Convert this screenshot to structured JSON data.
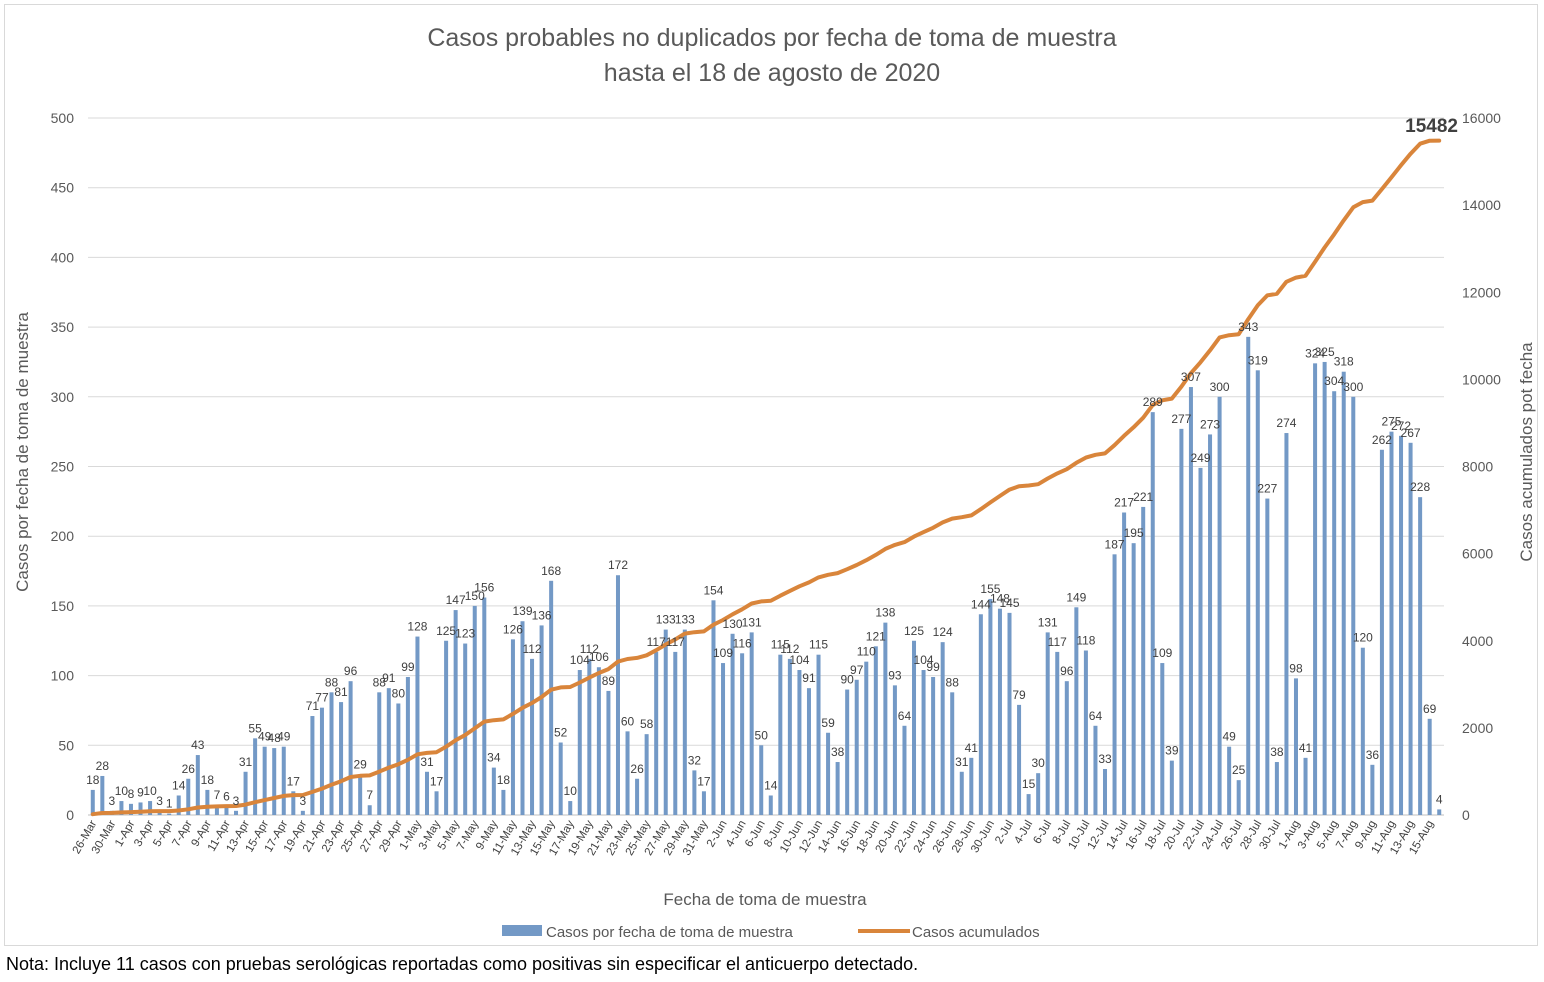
{
  "chart_data": {
    "type": "bar+line",
    "title": [
      "Casos probables no duplicados por fecha de toma de muestra",
      "hasta el  18 de agosto de 2020"
    ],
    "xlabel": "Fecha de toma de muestra",
    "ylabel": "Casos por fecha de toma de muestra",
    "y2label": "Casos acumulados pot fecha",
    "ylim": [
      0,
      500
    ],
    "y2lim": [
      0,
      16000
    ],
    "yticks": [
      0,
      50,
      100,
      150,
      200,
      250,
      300,
      350,
      400,
      450,
      500
    ],
    "y2ticks": [
      0,
      2000,
      4000,
      6000,
      8000,
      10000,
      12000,
      14000,
      16000
    ],
    "grid": "horizontal",
    "legend_position": "bottom",
    "colors": {
      "bars": "#7399c6",
      "line": "#d9853b"
    },
    "final_cumulative_label": "15482",
    "x_ticks": [
      "26-Mar",
      "30-Mar",
      "1-Apr",
      "3-Apr",
      "5-Apr",
      "7-Apr",
      "9-Apr",
      "11-Apr",
      "13-Apr",
      "15-Apr",
      "17-Apr",
      "19-Apr",
      "21-Apr",
      "23-Apr",
      "25-Apr",
      "27-Apr",
      "29-Apr",
      "1-May",
      "3-May",
      "5-May",
      "7-May",
      "9-May",
      "11-May",
      "13-May",
      "15-May",
      "17-May",
      "19-May",
      "21-May",
      "23-May",
      "25-May",
      "27-May",
      "29-May",
      "31-May",
      "2-Jun",
      "4-Jun",
      "6-Jun",
      "8-Jun",
      "10-Jun",
      "12-Jun",
      "14-Jun",
      "16-Jun",
      "18-Jun",
      "20-Jun",
      "22-Jun",
      "24-Jun",
      "26-Jun",
      "28-Jun",
      "30-Jun",
      "2-Jul",
      "4-Jul",
      "6-Jul",
      "8-Jul",
      "10-Jul",
      "12-Jul",
      "14-Jul",
      "16-Jul",
      "18-Jul",
      "20-Jul",
      "22-Jul",
      "24-Jul",
      "26-Jul",
      "28-Jul",
      "30-Jul",
      "1-Aug",
      "3-Aug",
      "5-Aug",
      "7-Aug",
      "9-Aug",
      "11-Aug",
      "13-Aug",
      "15-Aug"
    ],
    "series": [
      {
        "name": "Casos por fecha de toma de muestra",
        "type": "bar",
        "values": [
          18,
          28,
          3,
          10,
          8,
          9,
          10,
          3,
          1,
          14,
          26,
          43,
          18,
          7,
          6,
          3,
          31,
          55,
          49,
          48,
          49,
          17,
          3,
          71,
          77,
          88,
          81,
          96,
          29,
          7,
          88,
          91,
          80,
          99,
          128,
          31,
          17,
          125,
          147,
          123,
          150,
          156,
          34,
          18,
          126,
          139,
          112,
          136,
          168,
          52,
          10,
          104,
          112,
          106,
          89,
          172,
          60,
          26,
          58,
          117,
          133,
          117,
          133,
          32,
          17,
          154,
          109,
          130,
          116,
          131,
          50,
          14,
          115,
          112,
          104,
          91,
          115,
          59,
          38,
          90,
          97,
          110,
          121,
          138,
          93,
          64,
          125,
          104,
          99,
          124,
          88,
          31,
          41,
          144,
          155,
          148,
          145,
          79,
          15,
          30,
          131,
          117,
          96,
          149,
          118,
          64,
          33,
          187,
          217,
          195,
          221,
          289,
          109,
          39,
          277,
          307,
          249,
          273,
          300,
          49,
          25,
          343,
          319,
          227,
          38,
          274,
          98,
          41,
          324,
          325,
          304,
          318,
          300,
          120,
          36,
          262,
          275,
          272,
          267,
          228,
          69,
          4
        ]
      },
      {
        "name": "Casos acumulados",
        "type": "line",
        "values": [
          18,
          46,
          49,
          59,
          67,
          76,
          86,
          89,
          90,
          104,
          130,
          173,
          191,
          198,
          204,
          207,
          238,
          293,
          342,
          390,
          439,
          456,
          459,
          530,
          607,
          695,
          776,
          872,
          901,
          908,
          996,
          1087,
          1167,
          1266,
          1394,
          1425,
          1442,
          1567,
          1714,
          1837,
          1987,
          2143,
          2177,
          2195,
          2321,
          2460,
          2572,
          2708,
          2876,
          2928,
          2938,
          3042,
          3154,
          3260,
          3349,
          3521,
          3581,
          3607,
          3665,
          3782,
          3915,
          4032,
          4165,
          4197,
          4214,
          4368,
          4477,
          4607,
          4723,
          4854,
          4904,
          4918,
          5033,
          5145,
          5249,
          5340,
          5455,
          5514,
          5552,
          5642,
          5739,
          5849,
          5970,
          6108,
          6201,
          6265,
          6390,
          6494,
          6593,
          6717,
          6805,
          6836,
          6877,
          7021,
          7176,
          7324,
          7469,
          7548,
          7563,
          7593,
          7724,
          7841,
          7937,
          8086,
          8204,
          8268,
          8301,
          8488,
          8705,
          8900,
          9121,
          9410,
          9519,
          9558,
          9835,
          10142,
          10391,
          10664,
          10964,
          11013,
          11038,
          11381,
          11700,
          11927,
          11965,
          12239,
          12337,
          12378,
          12702,
          13027,
          13331,
          13649,
          13949,
          14069,
          14105,
          14367,
          14642,
          14914,
          15181,
          15409,
          15478,
          15482
        ]
      }
    ]
  },
  "legend": {
    "bars_label": "Casos por fecha de toma de muestra",
    "line_label": "Casos acumulados"
  },
  "footnote": "Nota: Incluye 11 casos con pruebas serológicas reportadas como positivas sin especificar el anticuerpo detectado."
}
